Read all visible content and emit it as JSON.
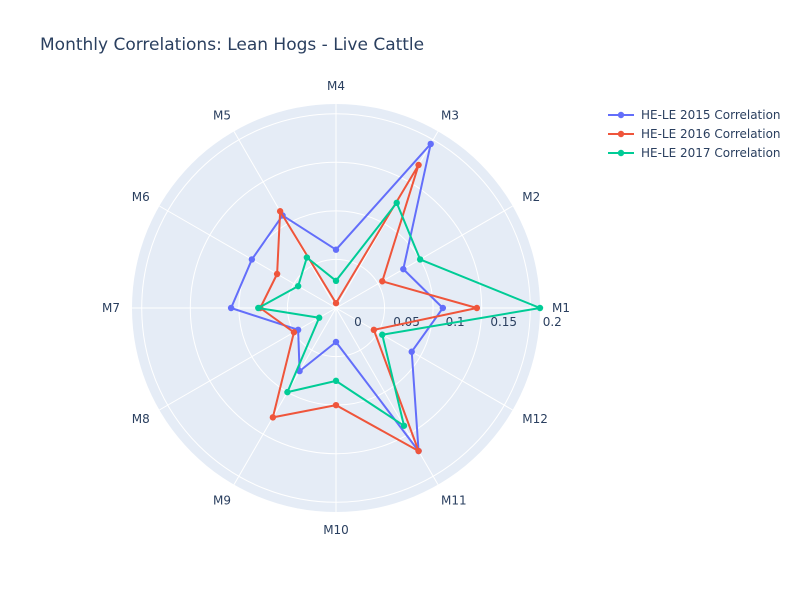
{
  "chart_data": {
    "type": "radar",
    "title": "Monthly Correlations: Lean Hogs - Live Cattle",
    "categories": [
      "M1",
      "M2",
      "M3",
      "M4",
      "M5",
      "M6",
      "M7",
      "M8",
      "M9",
      "M10",
      "M11",
      "M12"
    ],
    "radial_axis": {
      "range": [
        0,
        0.21
      ],
      "ticks": [
        0,
        0.05,
        0.1,
        0.15,
        0.2
      ],
      "tick_labels": [
        "0",
        "0.05",
        "0.1",
        "0.15",
        "0.2"
      ]
    },
    "grid": true,
    "legend_position": "top-right",
    "series": [
      {
        "name": "HE-LE 2015 Correlation",
        "color": "#636efa",
        "values": [
          0.11,
          0.08,
          0.195,
          0.06,
          0.11,
          0.1,
          0.108,
          0.045,
          0.075,
          0.035,
          0.17,
          0.09
        ]
      },
      {
        "name": "HE-LE 2016 Correlation",
        "color": "#ef553b",
        "values": [
          0.145,
          0.055,
          0.17,
          0.005,
          0.115,
          0.07,
          0.078,
          0.05,
          0.13,
          0.1,
          0.17,
          0.045
        ]
      },
      {
        "name": "HE-LE 2017 Correlation",
        "color": "#00cc96",
        "values": [
          0.21,
          0.1,
          0.125,
          0.028,
          0.06,
          0.045,
          0.08,
          0.02,
          0.1,
          0.075,
          0.14,
          0.055
        ]
      }
    ]
  }
}
